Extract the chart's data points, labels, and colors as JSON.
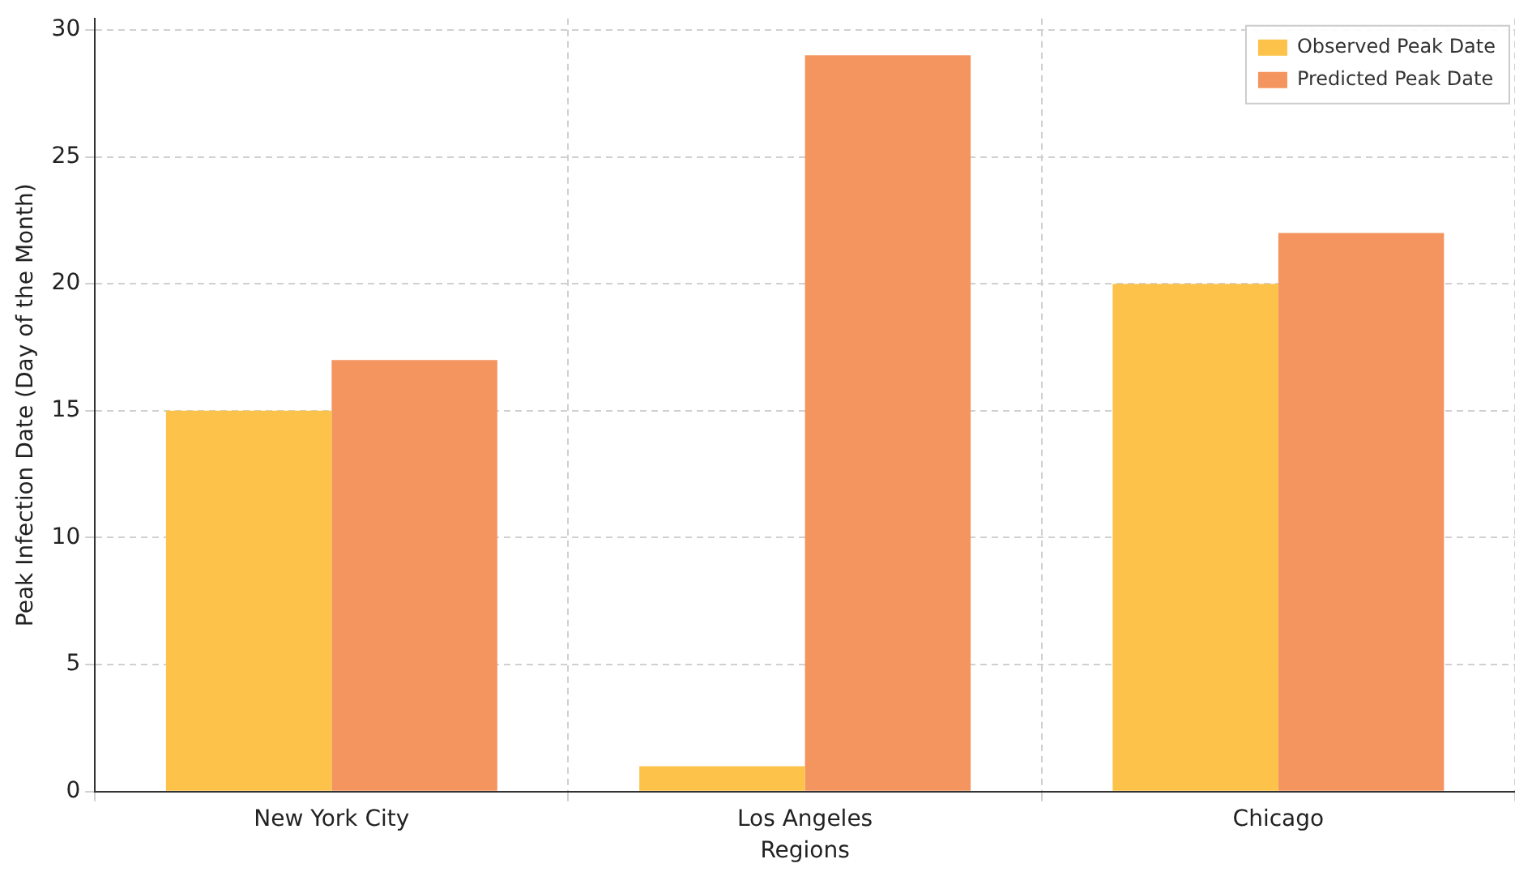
{
  "chart_data": {
    "type": "bar",
    "xlabel": "Regions",
    "ylabel": "Peak Infection Date (Day of the Month)",
    "categories": [
      "New York City",
      "Los Angeles",
      "Chicago"
    ],
    "series": [
      {
        "name": "Observed Peak Date",
        "color": "#fcc24a",
        "values": [
          15,
          1,
          20
        ]
      },
      {
        "name": "Predicted Peak Date",
        "color": "#f4945f",
        "values": [
          17,
          29,
          22
        ]
      }
    ],
    "ylim": [
      0,
      30.45
    ],
    "yticks": [
      0,
      5,
      10,
      15,
      20,
      25,
      30
    ],
    "grid": true,
    "legend": "top right"
  }
}
